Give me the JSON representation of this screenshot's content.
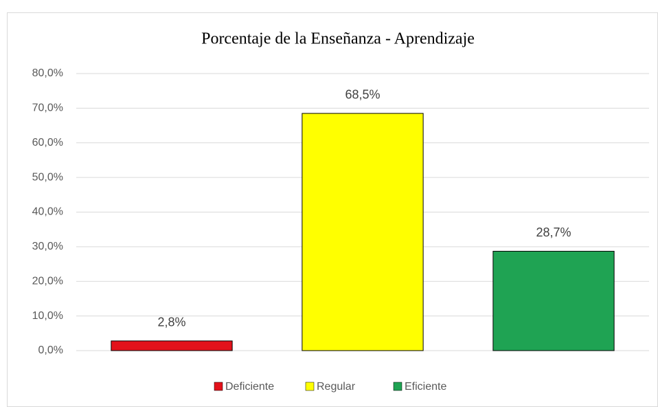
{
  "chart_data": {
    "type": "bar",
    "title": "Porcentaje de la Enseñanza - Aprendizaje",
    "categories": [
      "Deficiente",
      "Regular",
      "Eficiente"
    ],
    "values": [
      2.8,
      68.5,
      28.7
    ],
    "value_labels": [
      "2,8%",
      "68,5%",
      "28,7%"
    ],
    "colors": [
      "#e3121b",
      "#ffff00",
      "#1fa353"
    ],
    "ylim": [
      0,
      80
    ],
    "yticks": [
      {
        "value": 0,
        "label": "0,0%"
      },
      {
        "value": 10,
        "label": "10,0%"
      },
      {
        "value": 20,
        "label": "20,0%"
      },
      {
        "value": 30,
        "label": "30,0%"
      },
      {
        "value": 40,
        "label": "40,0%"
      },
      {
        "value": 50,
        "label": "50,0%"
      },
      {
        "value": 60,
        "label": "60,0%"
      },
      {
        "value": 70,
        "label": "70,0%"
      },
      {
        "value": 80,
        "label": "80,0%"
      }
    ],
    "grid": true,
    "legend": "bottom"
  }
}
